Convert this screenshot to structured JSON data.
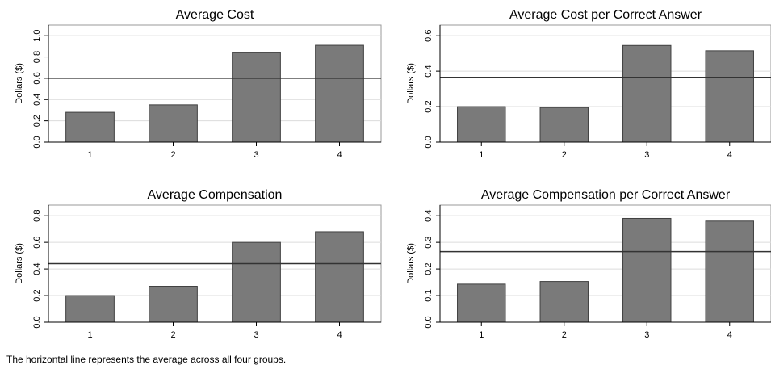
{
  "caption": "The horizontal line represents the average across all four groups.",
  "colors": {
    "bar_fill": "#7a7a7a",
    "bar_stroke": "#404040",
    "grid": "#dcdcdc",
    "axis": "#000000",
    "reference_line": "#333333"
  },
  "chart_data": [
    {
      "type": "bar",
      "title": "Average Cost",
      "ylabel": "Dollars ($)",
      "categories": [
        "1",
        "2",
        "3",
        "4"
      ],
      "values": [
        0.28,
        0.35,
        0.84,
        0.91
      ],
      "average_line": 0.6,
      "ylim": [
        0,
        1.1
      ],
      "yticks": [
        0.0,
        0.2,
        0.4,
        0.6,
        0.8,
        1.0
      ],
      "ytick_labels": [
        "0.0",
        "0.2",
        "0.4",
        "0.6",
        "0.8",
        "1.0"
      ],
      "grid": true
    },
    {
      "type": "bar",
      "title": "Average Cost per Correct Answer",
      "ylabel": "Dollars ($)",
      "categories": [
        "1",
        "2",
        "3",
        "4"
      ],
      "values": [
        0.2,
        0.195,
        0.545,
        0.515
      ],
      "average_line": 0.365,
      "ylim": [
        0,
        0.66
      ],
      "yticks": [
        0.0,
        0.2,
        0.4,
        0.6
      ],
      "ytick_labels": [
        "0.0",
        "0.2",
        "0.4",
        "0.6"
      ],
      "grid": true
    },
    {
      "type": "bar",
      "title": "Average Compensation",
      "ylabel": "Dollars ($)",
      "categories": [
        "1",
        "2",
        "3",
        "4"
      ],
      "values": [
        0.2,
        0.27,
        0.6,
        0.68
      ],
      "average_line": 0.44,
      "ylim": [
        0,
        0.88
      ],
      "yticks": [
        0.0,
        0.2,
        0.4,
        0.6,
        0.8
      ],
      "ytick_labels": [
        "0.0",
        "0.2",
        "0.4",
        "0.6",
        "0.8"
      ],
      "grid": true
    },
    {
      "type": "bar",
      "title": "Average Compensation per Correct Answer",
      "ylabel": "Dollars ($)",
      "categories": [
        "1",
        "2",
        "3",
        "4"
      ],
      "values": [
        0.143,
        0.153,
        0.39,
        0.38
      ],
      "average_line": 0.265,
      "ylim": [
        0,
        0.44
      ],
      "yticks": [
        0.0,
        0.1,
        0.2,
        0.3,
        0.4
      ],
      "ytick_labels": [
        "0.0",
        "0.1",
        "0.2",
        "0.3",
        "0.4"
      ],
      "grid": true
    }
  ]
}
